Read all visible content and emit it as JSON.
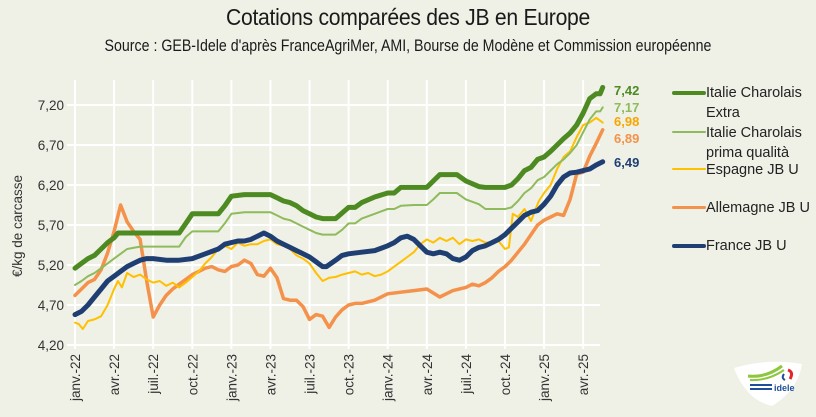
{
  "header": {
    "title": "Cotations comparées des JB en Europe",
    "subtitle": "Source : GEB-Idele d'après FranceAgriMer, AMI, Bourse de Modène et Commission européenne"
  },
  "logo": {
    "name": "idele-logo",
    "text": "idele"
  },
  "chart_data": {
    "type": "line",
    "title": "Cotations comparées des JB en Europe",
    "xlabel": "",
    "ylabel": "€/kg de carcasse",
    "ylim": [
      4.2,
      7.45
    ],
    "yticks": [
      "4,20",
      "4,70",
      "5,20",
      "5,70",
      "6,20",
      "6,70",
      "7,20"
    ],
    "ytick_values": [
      4.2,
      4.7,
      5.2,
      5.7,
      6.2,
      6.7,
      7.2
    ],
    "xticks": [
      "janv.-22",
      "avr.-22",
      "juil.-22",
      "oct.-22",
      "janv.-23",
      "avr.-23",
      "juil.-23",
      "oct.-23",
      "janv.-24",
      "avr.-24",
      "juil.-24",
      "oct.-24",
      "janv.-25",
      "avr.-25"
    ],
    "xtick_months": [
      0,
      3,
      6,
      9,
      12,
      15,
      18,
      21,
      24,
      27,
      30,
      33,
      36,
      39
    ],
    "x_unit": "months since janv.-22",
    "x_range": [
      0,
      40.5
    ],
    "grid": true,
    "legend_position": "right",
    "series": [
      {
        "name": "Italie Charolais Extra",
        "legend": "Italie Charolais Extra",
        "color": "#4e8a22",
        "width": 5,
        "end_label": "7,42",
        "x": [
          0,
          0.5,
          1,
          1.5,
          2,
          2.5,
          3,
          3.3,
          4,
          5,
          6,
          7,
          8,
          8.5,
          9,
          10,
          11,
          11.5,
          12,
          13,
          14,
          15,
          15.5,
          16,
          16.5,
          17,
          17.5,
          18,
          18.5,
          19,
          20,
          20.5,
          21,
          21.5,
          22,
          23,
          24,
          24.5,
          25,
          26,
          27,
          27.5,
          28,
          29,
          29.3,
          30,
          31,
          31.5,
          32,
          33,
          33.5,
          34,
          34.5,
          35,
          35.5,
          36,
          36.5,
          37,
          37.5,
          38,
          38.5,
          39,
          39.5,
          40,
          40.3,
          40.5
        ],
        "values": [
          5.16,
          5.22,
          5.28,
          5.32,
          5.4,
          5.48,
          5.54,
          5.6,
          5.6,
          5.6,
          5.6,
          5.6,
          5.6,
          5.72,
          5.84,
          5.84,
          5.84,
          5.94,
          6.06,
          6.08,
          6.08,
          6.08,
          6.04,
          6.0,
          5.98,
          5.94,
          5.88,
          5.84,
          5.8,
          5.78,
          5.78,
          5.85,
          5.92,
          5.92,
          5.98,
          6.05,
          6.1,
          6.1,
          6.17,
          6.17,
          6.17,
          6.25,
          6.33,
          6.33,
          6.33,
          6.25,
          6.18,
          6.17,
          6.17,
          6.17,
          6.2,
          6.28,
          6.38,
          6.42,
          6.52,
          6.55,
          6.62,
          6.7,
          6.78,
          6.85,
          6.95,
          7.1,
          7.28,
          7.34,
          7.34,
          7.42
        ]
      },
      {
        "name": "Italie Charolais prima qualità",
        "legend": "Italie Charolais prima qualità",
        "color": "#8ebb5c",
        "width": 2,
        "end_label": "7,17",
        "x": [
          0,
          0.5,
          1,
          1.5,
          2,
          2.5,
          3,
          3.5,
          4,
          5,
          6,
          7,
          8,
          8.5,
          9,
          10,
          11,
          11.5,
          12,
          13,
          14,
          15,
          15.5,
          16,
          16.5,
          17,
          17.5,
          18,
          18.5,
          19,
          20,
          20.5,
          21,
          21.5,
          22,
          23,
          24,
          24.5,
          25,
          26,
          27,
          27.5,
          28,
          29,
          29.3,
          30,
          31,
          31.5,
          32,
          33,
          33.5,
          34,
          34.5,
          35,
          35.5,
          36,
          36.5,
          37,
          37.5,
          38,
          38.5,
          39,
          39.5,
          40,
          40.3,
          40.5
        ],
        "values": [
          4.95,
          5.0,
          5.06,
          5.1,
          5.16,
          5.22,
          5.28,
          5.34,
          5.4,
          5.43,
          5.43,
          5.43,
          5.43,
          5.55,
          5.62,
          5.62,
          5.62,
          5.72,
          5.84,
          5.86,
          5.86,
          5.86,
          5.82,
          5.78,
          5.76,
          5.72,
          5.68,
          5.64,
          5.6,
          5.58,
          5.58,
          5.64,
          5.72,
          5.72,
          5.78,
          5.84,
          5.9,
          5.9,
          5.94,
          5.95,
          5.95,
          6.02,
          6.1,
          6.1,
          6.1,
          6.02,
          5.96,
          5.9,
          5.9,
          5.9,
          5.92,
          6.0,
          6.1,
          6.16,
          6.26,
          6.3,
          6.38,
          6.46,
          6.52,
          6.6,
          6.7,
          6.86,
          7.02,
          7.12,
          7.12,
          7.17
        ]
      },
      {
        "name": "Espagne JB U",
        "legend": "Espagne JB U",
        "color": "#ffc000",
        "width": 2,
        "end_label": "6,98",
        "x": [
          0,
          0.3,
          0.6,
          1,
          1.5,
          2,
          2.5,
          3,
          3.3,
          3.6,
          4,
          4.5,
          5,
          5.5,
          6,
          6.5,
          7,
          7.5,
          8,
          8.5,
          9,
          9.5,
          10,
          10.5,
          11,
          11.5,
          12,
          12.5,
          13,
          13.5,
          14,
          14.5,
          15,
          15.5,
          16,
          16.5,
          17,
          17.5,
          18,
          18.5,
          19,
          19.5,
          20,
          20.5,
          21,
          21.5,
          22,
          22.5,
          23,
          23.5,
          24,
          24.5,
          25,
          25.5,
          26,
          26.5,
          27,
          27.5,
          28,
          28.5,
          29,
          29.5,
          30,
          30.5,
          31,
          31.5,
          32,
          32.5,
          33,
          33.3,
          33.6,
          34,
          34.5,
          35,
          35.3,
          35.6,
          36,
          36.5,
          37,
          37.5,
          38,
          38.5,
          39,
          39.5,
          40,
          40.5
        ],
        "values": [
          4.48,
          4.46,
          4.4,
          4.5,
          4.52,
          4.56,
          4.7,
          4.9,
          5.0,
          4.92,
          5.1,
          5.05,
          5.08,
          5.02,
          4.98,
          5.0,
          4.94,
          4.98,
          4.92,
          4.98,
          5.05,
          5.12,
          5.22,
          5.3,
          5.4,
          5.44,
          5.4,
          5.48,
          5.44,
          5.46,
          5.46,
          5.5,
          5.52,
          5.46,
          5.44,
          5.4,
          5.32,
          5.28,
          5.22,
          5.1,
          5.0,
          5.04,
          5.05,
          5.08,
          5.1,
          5.12,
          5.08,
          5.1,
          5.06,
          5.08,
          5.12,
          5.18,
          5.24,
          5.3,
          5.36,
          5.46,
          5.52,
          5.48,
          5.54,
          5.5,
          5.54,
          5.46,
          5.52,
          5.5,
          5.52,
          5.48,
          5.48,
          5.5,
          5.4,
          5.42,
          5.84,
          5.8,
          5.9,
          5.75,
          5.88,
          6.0,
          6.1,
          6.2,
          6.4,
          6.55,
          6.62,
          6.8,
          6.95,
          6.98,
          7.04,
          6.98
        ]
      },
      {
        "name": "Allemagne JB U",
        "legend": "Allemagne JB U",
        "color": "#f4914a",
        "width": 3.5,
        "end_label": "6,89",
        "x": [
          0,
          0.5,
          1,
          1.5,
          2,
          2.5,
          3,
          3.5,
          4,
          4.5,
          5,
          5.5,
          6,
          6.5,
          7,
          7.5,
          8,
          8.5,
          9,
          9.5,
          10,
          10.5,
          11,
          11.5,
          12,
          12.5,
          13,
          13.5,
          14,
          14.5,
          15,
          15.5,
          16,
          16.5,
          17,
          17.5,
          18,
          18.5,
          19,
          19.5,
          20,
          20.5,
          21,
          21.5,
          22,
          23,
          24,
          25,
          26,
          27,
          28,
          29,
          30,
          30.5,
          31,
          31.5,
          32,
          32.5,
          33,
          33.5,
          34,
          34.5,
          35,
          35.5,
          36,
          36.5,
          37,
          37.5,
          38,
          38.5,
          39,
          39.5,
          40,
          40.5
        ],
        "values": [
          4.82,
          4.9,
          4.98,
          5.02,
          5.14,
          5.35,
          5.62,
          5.95,
          5.74,
          5.62,
          5.52,
          5.0,
          4.55,
          4.7,
          4.82,
          4.9,
          4.96,
          5.02,
          5.08,
          5.12,
          5.16,
          5.18,
          5.14,
          5.12,
          5.18,
          5.2,
          5.26,
          5.22,
          5.08,
          5.06,
          5.16,
          5.04,
          4.78,
          4.76,
          4.76,
          4.68,
          4.52,
          4.58,
          4.56,
          4.42,
          4.55,
          4.64,
          4.7,
          4.72,
          4.72,
          4.76,
          4.84,
          4.86,
          4.88,
          4.9,
          4.8,
          4.88,
          4.92,
          4.96,
          4.94,
          4.98,
          5.04,
          5.12,
          5.18,
          5.26,
          5.36,
          5.46,
          5.58,
          5.7,
          5.76,
          5.8,
          5.84,
          5.82,
          6.02,
          6.34,
          6.36,
          6.56,
          6.72,
          6.89
        ]
      },
      {
        "name": "France JB U",
        "legend": "France JB U",
        "color": "#1f3f73",
        "width": 5,
        "end_label": "6,49",
        "x": [
          0,
          0.5,
          1,
          1.5,
          2,
          2.5,
          3,
          3.5,
          4,
          4.5,
          5,
          5.5,
          6,
          7,
          8,
          9,
          10,
          11,
          11.5,
          12,
          12.5,
          13,
          13.5,
          14,
          14.5,
          15,
          15.5,
          16,
          16.5,
          17,
          17.5,
          18,
          18.5,
          19,
          19.3,
          20,
          20.5,
          21,
          22,
          23,
          24,
          24.5,
          25,
          25.5,
          26,
          26.5,
          27,
          27.5,
          28,
          28.5,
          29,
          29.5,
          30,
          30.5,
          31,
          31.5,
          32,
          32.5,
          33,
          33.5,
          34,
          34.5,
          35,
          35.5,
          36,
          36.5,
          37,
          37.5,
          38,
          38.5,
          39,
          39.5,
          40,
          40.5
        ],
        "values": [
          4.58,
          4.62,
          4.7,
          4.8,
          4.9,
          5.0,
          5.06,
          5.12,
          5.18,
          5.22,
          5.26,
          5.28,
          5.28,
          5.26,
          5.26,
          5.28,
          5.34,
          5.4,
          5.46,
          5.48,
          5.5,
          5.5,
          5.52,
          5.56,
          5.6,
          5.56,
          5.5,
          5.46,
          5.42,
          5.38,
          5.34,
          5.3,
          5.24,
          5.18,
          5.18,
          5.26,
          5.32,
          5.34,
          5.36,
          5.38,
          5.44,
          5.48,
          5.54,
          5.56,
          5.52,
          5.44,
          5.36,
          5.34,
          5.36,
          5.34,
          5.28,
          5.26,
          5.3,
          5.38,
          5.42,
          5.44,
          5.48,
          5.52,
          5.58,
          5.66,
          5.74,
          5.82,
          5.86,
          5.88,
          5.96,
          6.06,
          6.2,
          6.3,
          6.35,
          6.36,
          6.38,
          6.4,
          6.45,
          6.49
        ]
      }
    ]
  }
}
